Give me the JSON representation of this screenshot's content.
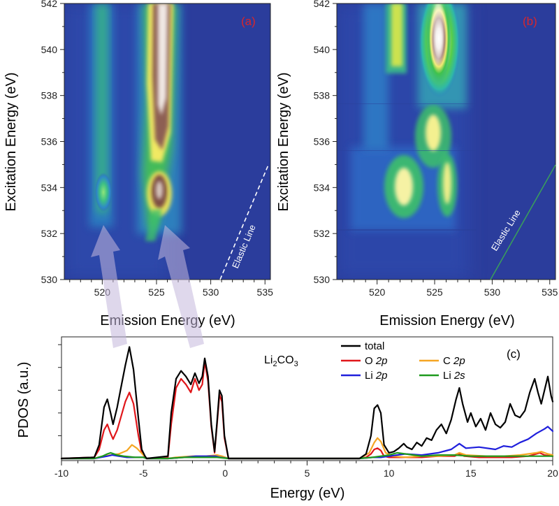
{
  "chart_data": [
    {
      "type": "heatmap",
      "panel_label": "(a)",
      "xlabel": "Emission Energy (eV)",
      "ylabel": "Excitation Energy (eV)",
      "xlim": [
        516.5,
        535.5
      ],
      "ylim": [
        530,
        542
      ],
      "x_ticks": [
        520,
        525,
        530,
        535
      ],
      "y_ticks": [
        530,
        532,
        534,
        536,
        538,
        540,
        542
      ],
      "x_tick_labels": [
        "520",
        "525",
        "530",
        "535"
      ],
      "y_tick_labels": [
        "530",
        "532",
        "534",
        "536",
        "538",
        "540",
        "542"
      ],
      "annotation": "Elastic Line",
      "elastic_line": {
        "x": [
          530.4,
          535.0
        ],
        "y": [
          530.0,
          535.0
        ]
      },
      "features": [
        {
          "x": 526.0,
          "y_range": [
            535.5,
            542
          ],
          "intensity": 1.0
        },
        {
          "x": 525.4,
          "y_range": [
            532.5,
            534.5
          ],
          "intensity": 0.95
        },
        {
          "x": 519.8,
          "y_range": [
            532.6,
            542
          ],
          "intensity": 0.45
        }
      ]
    },
    {
      "type": "heatmap",
      "panel_label": "(b)",
      "xlabel": "Emission Energy (eV)",
      "ylabel": "Excitation Energy (eV)",
      "xlim": [
        516.5,
        535.5
      ],
      "ylim": [
        530,
        542
      ],
      "x_ticks": [
        520,
        525,
        530,
        535
      ],
      "y_ticks": [
        530,
        532,
        534,
        536,
        538,
        540,
        542
      ],
      "x_tick_labels": [
        "520",
        "525",
        "530",
        "535"
      ],
      "y_tick_labels": [
        "530",
        "532",
        "534",
        "536",
        "538",
        "540",
        "542"
      ],
      "annotation": "Elastic Line",
      "elastic_line": {
        "x": [
          530.0,
          535.0
        ],
        "y": [
          530.0,
          535.0
        ]
      },
      "features": [
        {
          "x": 525.0,
          "y_range": [
            538.5,
            542
          ],
          "intensity": 1.0
        },
        {
          "x": 522.5,
          "y": 534.0,
          "intensity": 0.8
        },
        {
          "x": 525.0,
          "y": 536.0,
          "intensity": 0.75
        },
        {
          "x": 526.8,
          "y": 534.0,
          "intensity": 0.7
        }
      ]
    },
    {
      "type": "line",
      "panel_label": "(c)",
      "xlabel": "Energy (eV)",
      "ylabel": "PDOS (a.u.)",
      "compound": "Li2CO3",
      "compound_main": "Li",
      "compound_sub1": "2",
      "compound_mid": "CO",
      "compound_sub2": "3",
      "xlim": [
        -10,
        20
      ],
      "ylim": [
        0,
        1.05
      ],
      "x_ticks": [
        -10,
        -5,
        0,
        5,
        10,
        15,
        20
      ],
      "x_tick_labels": [
        "-10",
        "-5",
        "0",
        "5",
        "10",
        "15",
        "20"
      ],
      "series": [
        {
          "name": "total",
          "color": "#000000",
          "x": [
            -10,
            -8.0,
            -7.7,
            -7.4,
            -7.2,
            -7.0,
            -6.85,
            -6.6,
            -6.4,
            -6.1,
            -5.85,
            -5.6,
            -5.3,
            -5.1,
            -4.9,
            -4.8,
            -3.5,
            -3.3,
            -3.0,
            -2.7,
            -2.4,
            -2.1,
            -1.85,
            -1.6,
            -1.4,
            -1.25,
            -1.05,
            -0.85,
            -0.65,
            -0.5,
            -0.35,
            -0.2,
            -0.05,
            0.2,
            8.2,
            8.6,
            8.9,
            9.1,
            9.3,
            9.5,
            9.7,
            10.0,
            10.3,
            10.6,
            10.9,
            11.1,
            11.4,
            11.7,
            12.0,
            12.3,
            12.6,
            12.9,
            13.2,
            13.5,
            13.8,
            14.1,
            14.3,
            14.5,
            14.8,
            15.0,
            15.3,
            15.6,
            15.9,
            16.2,
            16.5,
            16.8,
            17.1,
            17.4,
            17.7,
            18.0,
            18.3,
            18.6,
            18.9,
            19.1,
            19.3,
            19.5,
            19.7,
            19.9,
            20.0
          ],
          "y": [
            0,
            0.01,
            0.12,
            0.45,
            0.52,
            0.4,
            0.3,
            0.45,
            0.6,
            0.82,
            0.98,
            0.78,
            0.35,
            0.08,
            0.02,
            0,
            0.02,
            0.4,
            0.7,
            0.77,
            0.72,
            0.65,
            0.75,
            0.66,
            0.72,
            0.88,
            0.72,
            0.3,
            0.06,
            0.32,
            0.6,
            0.55,
            0.2,
            0,
            0,
            0.04,
            0.2,
            0.44,
            0.47,
            0.4,
            0.12,
            0.05,
            0.06,
            0.09,
            0.13,
            0.1,
            0.08,
            0.14,
            0.11,
            0.18,
            0.16,
            0.25,
            0.3,
            0.22,
            0.34,
            0.52,
            0.62,
            0.48,
            0.32,
            0.4,
            0.28,
            0.35,
            0.25,
            0.4,
            0.3,
            0.27,
            0.32,
            0.48,
            0.38,
            0.36,
            0.42,
            0.58,
            0.7,
            0.58,
            0.48,
            0.6,
            0.72,
            0.55,
            0.5
          ]
        },
        {
          "name": "O 2p",
          "color": "#e0161a",
          "x": [
            -10,
            -8.0,
            -7.7,
            -7.4,
            -7.2,
            -7.0,
            -6.85,
            -6.6,
            -6.4,
            -6.1,
            -5.85,
            -5.6,
            -5.3,
            -5.1,
            -4.9,
            -4.8,
            -3.5,
            -3.3,
            -3.0,
            -2.7,
            -2.4,
            -2.1,
            -1.85,
            -1.6,
            -1.4,
            -1.25,
            -1.05,
            -0.85,
            -0.65,
            -0.5,
            -0.35,
            -0.2,
            -0.05,
            0.2,
            8.2,
            8.6,
            8.9,
            9.1,
            9.3,
            9.5,
            9.7,
            10.0,
            11.0,
            12.0,
            13.0,
            14.0,
            14.3,
            14.6,
            15.5,
            16.5,
            17.5,
            18.5,
            19.0,
            19.2,
            19.5,
            20.0
          ],
          "y": [
            0,
            0.01,
            0.08,
            0.25,
            0.3,
            0.22,
            0.17,
            0.25,
            0.35,
            0.5,
            0.58,
            0.48,
            0.2,
            0.05,
            0.01,
            0,
            0.01,
            0.3,
            0.62,
            0.7,
            0.65,
            0.58,
            0.7,
            0.6,
            0.65,
            0.85,
            0.68,
            0.28,
            0.05,
            0.3,
            0.56,
            0.5,
            0.18,
            0,
            0,
            0.01,
            0.04,
            0.08,
            0.09,
            0.07,
            0.02,
            0.01,
            0.01,
            0.01,
            0.02,
            0.02,
            0.04,
            0.02,
            0.01,
            0.01,
            0.01,
            0.02,
            0.04,
            0.05,
            0.03,
            0.02
          ]
        },
        {
          "name": "C 2p",
          "color": "#f5a623",
          "x": [
            -10,
            -8.0,
            -7.4,
            -7.0,
            -6.5,
            -6.0,
            -5.7,
            -5.4,
            -5.0,
            -4.8,
            -3.5,
            -3.0,
            -2.0,
            -1.2,
            -0.5,
            -0.2,
            0.2,
            8.2,
            8.8,
            9.1,
            9.3,
            9.5,
            9.8,
            10.2,
            11.0,
            12.0,
            13.0,
            14.0,
            14.3,
            14.7,
            16.0,
            17.0,
            18.0,
            19.0,
            19.3,
            19.7,
            20.0
          ],
          "y": [
            0,
            0,
            0.02,
            0.03,
            0.04,
            0.07,
            0.12,
            0.09,
            0.03,
            0,
            0,
            0.01,
            0.02,
            0.02,
            0.03,
            0.02,
            0,
            0,
            0.05,
            0.14,
            0.18,
            0.15,
            0.05,
            0.02,
            0.01,
            0.02,
            0.02,
            0.03,
            0.05,
            0.03,
            0.02,
            0.02,
            0.03,
            0.05,
            0.06,
            0.04,
            0.03
          ]
        },
        {
          "name": "Li 2p",
          "color": "#1f1fdc",
          "x": [
            -10,
            -8.0,
            -7.2,
            -6.9,
            -6.5,
            -6.0,
            -5.0,
            -4.8,
            -3.5,
            -2.5,
            -1.8,
            -1.2,
            -0.6,
            -0.3,
            0.2,
            8.2,
            9.0,
            9.5,
            10.0,
            11.0,
            12.0,
            13.0,
            13.8,
            14.3,
            14.7,
            15.5,
            16.5,
            17.0,
            17.5,
            18.0,
            18.5,
            19.0,
            19.5,
            19.7,
            20.0
          ],
          "y": [
            0,
            0,
            0.02,
            0.03,
            0.02,
            0.01,
            0.01,
            0,
            0,
            0.01,
            0.02,
            0.02,
            0.02,
            0.01,
            0,
            0,
            0.01,
            0.01,
            0.02,
            0.04,
            0.03,
            0.05,
            0.08,
            0.13,
            0.09,
            0.1,
            0.08,
            0.11,
            0.1,
            0.14,
            0.17,
            0.22,
            0.26,
            0.28,
            0.24
          ]
        },
        {
          "name": "Li 2s",
          "color": "#1e9a1e",
          "x": [
            -10,
            -8.0,
            -7.5,
            -7.2,
            -7.0,
            -6.6,
            -6.2,
            -5.5,
            -5.0,
            -4.8,
            -3.5,
            -2.5,
            -1.5,
            -0.5,
            0.2,
            8.2,
            9.0,
            9.5,
            10.0,
            10.5,
            11.0,
            11.5,
            12.0,
            13.0,
            14.0,
            15.0,
            16.0,
            17.0,
            18.0,
            19.0,
            20.0
          ],
          "y": [
            0,
            0,
            0.02,
            0.04,
            0.05,
            0.03,
            0.02,
            0.01,
            0.01,
            0,
            0,
            0.01,
            0.01,
            0.01,
            0,
            0,
            0.01,
            0.02,
            0.03,
            0.05,
            0.04,
            0.03,
            0.02,
            0.03,
            0.03,
            0.02,
            0.02,
            0.02,
            0.02,
            0.02,
            0.02
          ]
        }
      ]
    }
  ]
}
